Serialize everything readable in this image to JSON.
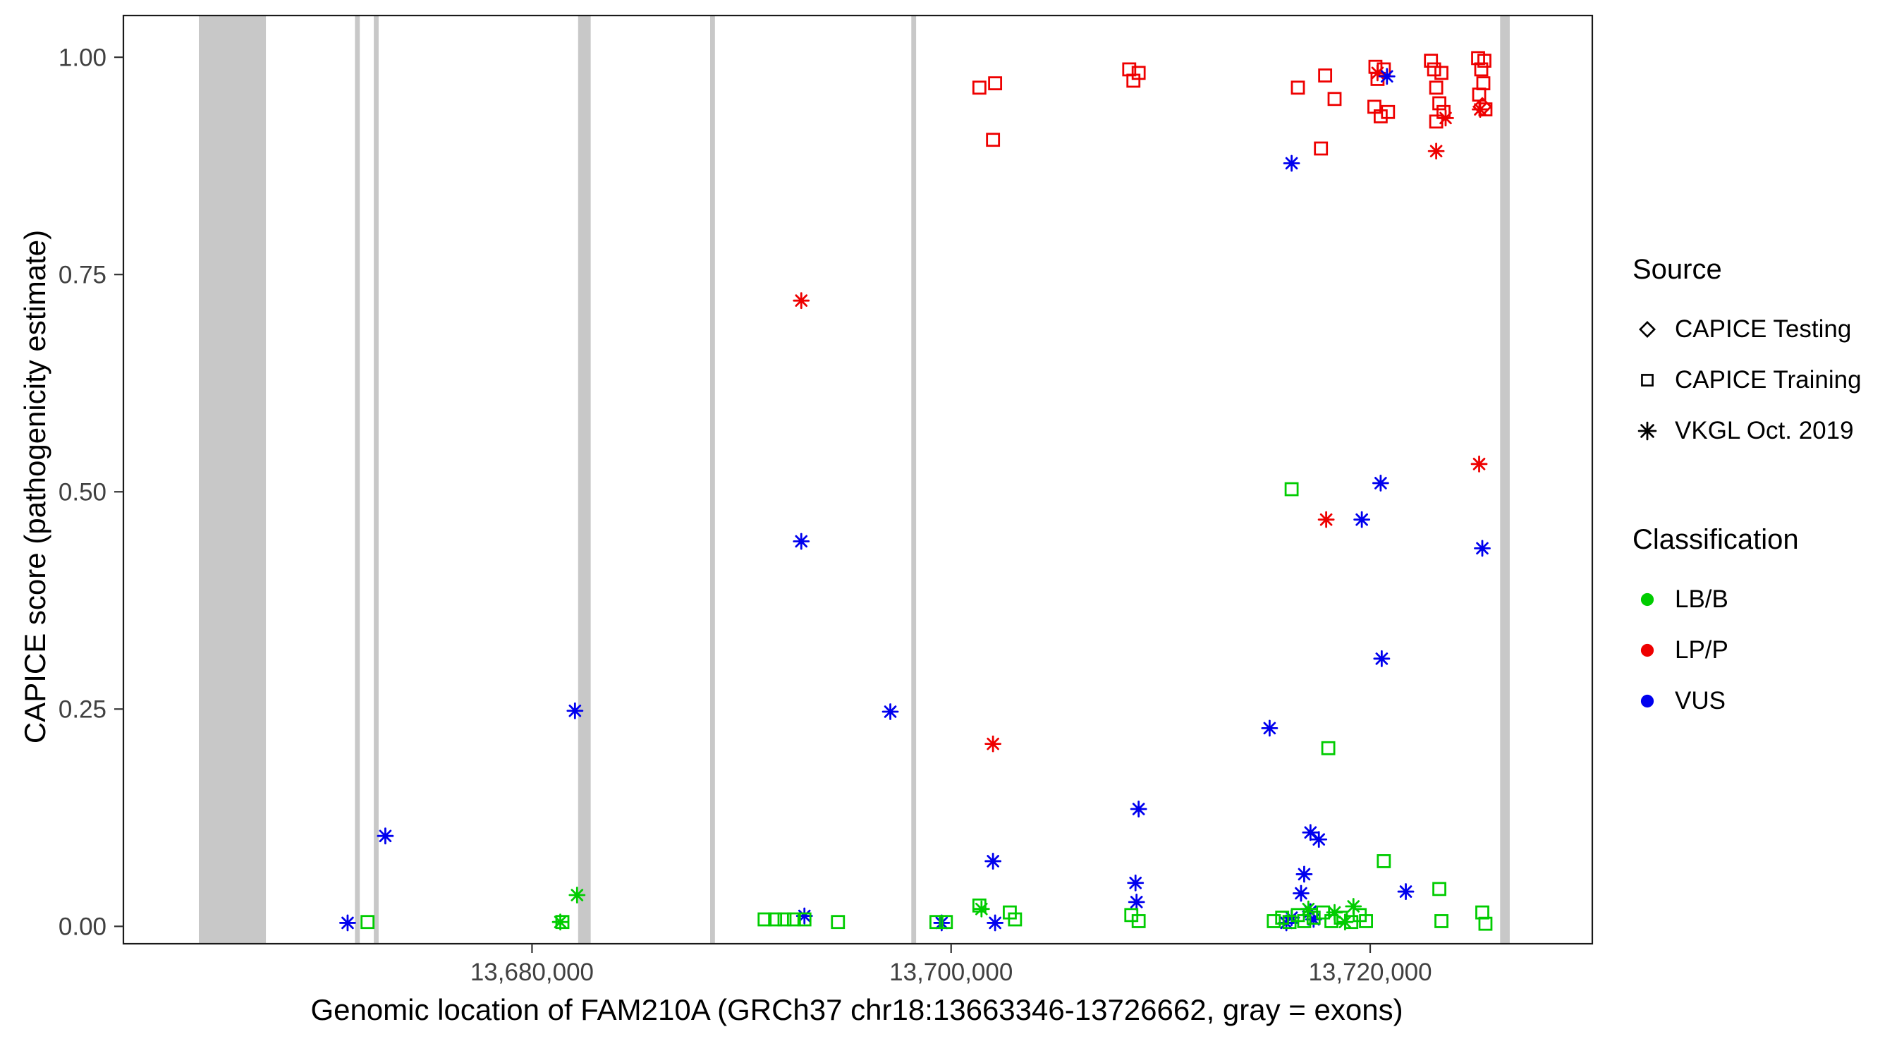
{
  "chart_data": {
    "type": "scatter",
    "title": "",
    "xlabel": "Genomic location of FAM210A (GRCh37 chr18:13663346-13726662, gray = exons)",
    "ylabel": "CAPICE score (pathogenicity estimate)",
    "xlim": [
      13660500,
      13730600
    ],
    "ylim": [
      -0.02,
      1.048
    ],
    "grid": "off",
    "legend_position": "right",
    "x_ticks": [
      {
        "value": 13680000,
        "label": "13,680,000"
      },
      {
        "value": 13700000,
        "label": "13,700,000"
      },
      {
        "value": 13720000,
        "label": "13,720,000"
      }
    ],
    "y_ticks": [
      {
        "value": 0.0,
        "label": "0.00"
      },
      {
        "value": 0.25,
        "label": "0.25"
      },
      {
        "value": 0.5,
        "label": "0.50"
      },
      {
        "value": 0.75,
        "label": "0.75"
      },
      {
        "value": 1.0,
        "label": "1.00"
      }
    ],
    "exon_color": "#c8c8c8",
    "exons": [
      {
        "start": 13664100,
        "end": 13667300
      },
      {
        "start": 13671550,
        "end": 13671780
      },
      {
        "start": 13672450,
        "end": 13672680
      },
      {
        "start": 13682200,
        "end": 13682800
      },
      {
        "start": 13688500,
        "end": 13688730
      },
      {
        "start": 13698100,
        "end": 13698330
      },
      {
        "start": 13726200,
        "end": 13726660
      }
    ],
    "colors": {
      "LB/B": "#00cc00",
      "LP/P": "#ee0000",
      "VUS": "#0000ee"
    },
    "series": [
      {
        "name": "LP/P - CAPICE Training",
        "source": "CAPICE Training",
        "classification": "LP/P",
        "shape": "square",
        "points": [
          [
            13701350,
            0.965
          ],
          [
            13702100,
            0.97
          ],
          [
            13702000,
            0.905
          ],
          [
            13708500,
            0.986
          ],
          [
            13708950,
            0.982
          ],
          [
            13708700,
            0.973
          ],
          [
            13716550,
            0.965
          ],
          [
            13717850,
            0.979
          ],
          [
            13717650,
            0.895
          ],
          [
            13718300,
            0.952
          ],
          [
            13720250,
            0.989
          ],
          [
            13720650,
            0.986
          ],
          [
            13720350,
            0.975
          ],
          [
            13720200,
            0.943
          ],
          [
            13720500,
            0.932
          ],
          [
            13720850,
            0.937
          ],
          [
            13722900,
            0.996
          ],
          [
            13723050,
            0.986
          ],
          [
            13723400,
            0.982
          ],
          [
            13723150,
            0.965
          ],
          [
            13723300,
            0.947
          ],
          [
            13723500,
            0.937
          ],
          [
            13723150,
            0.926
          ],
          [
            13725150,
            0.999
          ],
          [
            13725450,
            0.996
          ],
          [
            13725300,
            0.986
          ],
          [
            13725400,
            0.97
          ],
          [
            13725200,
            0.957
          ],
          [
            13725500,
            0.94
          ]
        ]
      },
      {
        "name": "LP/P - VKGL Oct. 2019",
        "source": "VKGL Oct. 2019",
        "classification": "LP/P",
        "shape": "asterisk",
        "points": [
          [
            13692850,
            0.72
          ],
          [
            13702000,
            0.21
          ],
          [
            13717900,
            0.468
          ],
          [
            13725200,
            0.532
          ],
          [
            13723150,
            0.892
          ],
          [
            13723600,
            0.93
          ],
          [
            13725250,
            0.94
          ],
          [
            13720350,
            0.982
          ]
        ]
      },
      {
        "name": "LP/P - CAPICE Testing",
        "source": "CAPICE Testing",
        "classification": "LP/P",
        "shape": "diamond",
        "points": [
          [
            13725350,
            0.943
          ]
        ]
      },
      {
        "name": "VUS - VKGL Oct. 2019",
        "source": "VKGL Oct. 2019",
        "classification": "VUS",
        "shape": "asterisk",
        "points": [
          [
            13671200,
            0.004
          ],
          [
            13673000,
            0.104
          ],
          [
            13682050,
            0.248
          ],
          [
            13692850,
            0.443
          ],
          [
            13693000,
            0.012
          ],
          [
            13697100,
            0.247
          ],
          [
            13699550,
            0.004
          ],
          [
            13702000,
            0.075
          ],
          [
            13702100,
            0.004
          ],
          [
            13708950,
            0.135
          ],
          [
            13708800,
            0.05
          ],
          [
            13708850,
            0.028
          ],
          [
            13715200,
            0.228
          ],
          [
            13716250,
            0.878
          ],
          [
            13717150,
            0.108
          ],
          [
            13717550,
            0.1
          ],
          [
            13716850,
            0.06
          ],
          [
            13716700,
            0.038
          ],
          [
            13716250,
            0.01
          ],
          [
            13717150,
            0.017
          ],
          [
            13716000,
            0.004
          ],
          [
            13717300,
            0.008
          ],
          [
            13719600,
            0.468
          ],
          [
            13720500,
            0.51
          ],
          [
            13720550,
            0.308
          ],
          [
            13720800,
            0.978
          ],
          [
            13721700,
            0.04
          ],
          [
            13725350,
            0.435
          ]
        ]
      },
      {
        "name": "LB/B - CAPICE Training",
        "source": "CAPICE Training",
        "classification": "LB/B",
        "shape": "square",
        "points": [
          [
            13672150,
            0.005
          ],
          [
            13681450,
            0.005
          ],
          [
            13691100,
            0.008
          ],
          [
            13691600,
            0.008
          ],
          [
            13692050,
            0.008
          ],
          [
            13692500,
            0.008
          ],
          [
            13693000,
            0.008
          ],
          [
            13694600,
            0.005
          ],
          [
            13699300,
            0.005
          ],
          [
            13699750,
            0.005
          ],
          [
            13701350,
            0.024
          ],
          [
            13702800,
            0.016
          ],
          [
            13703050,
            0.008
          ],
          [
            13708600,
            0.013
          ],
          [
            13708950,
            0.006
          ],
          [
            13716250,
            0.503
          ],
          [
            13718000,
            0.205
          ],
          [
            13715400,
            0.006
          ],
          [
            13715800,
            0.01
          ],
          [
            13716150,
            0.005
          ],
          [
            13716550,
            0.013
          ],
          [
            13716850,
            0.006
          ],
          [
            13717300,
            0.01
          ],
          [
            13717750,
            0.016
          ],
          [
            13718150,
            0.006
          ],
          [
            13718600,
            0.01
          ],
          [
            13719100,
            0.005
          ],
          [
            13719500,
            0.013
          ],
          [
            13719800,
            0.006
          ],
          [
            13720650,
            0.075
          ],
          [
            13723300,
            0.043
          ],
          [
            13723400,
            0.006
          ],
          [
            13725350,
            0.016
          ],
          [
            13725500,
            0.003
          ]
        ]
      },
      {
        "name": "LB/B - VKGL Oct. 2019",
        "source": "VKGL Oct. 2019",
        "classification": "LB/B",
        "shape": "asterisk",
        "points": [
          [
            13682150,
            0.036
          ],
          [
            13681350,
            0.005
          ],
          [
            13701450,
            0.02
          ],
          [
            13717050,
            0.02
          ],
          [
            13718300,
            0.016
          ],
          [
            13719200,
            0.023
          ],
          [
            13718800,
            0.005
          ]
        ]
      }
    ]
  },
  "legend": {
    "source": {
      "title": "Source",
      "items": [
        {
          "label": "CAPICE Testing",
          "shape": "diamond"
        },
        {
          "label": "CAPICE Training",
          "shape": "square"
        },
        {
          "label": "VKGL Oct. 2019",
          "shape": "asterisk"
        }
      ]
    },
    "classification": {
      "title": "Classification",
      "items": [
        {
          "label": "LB/B",
          "color": "#00cc00"
        },
        {
          "label": "LP/P",
          "color": "#ee0000"
        },
        {
          "label": "VUS",
          "color": "#0000ee"
        }
      ]
    }
  }
}
